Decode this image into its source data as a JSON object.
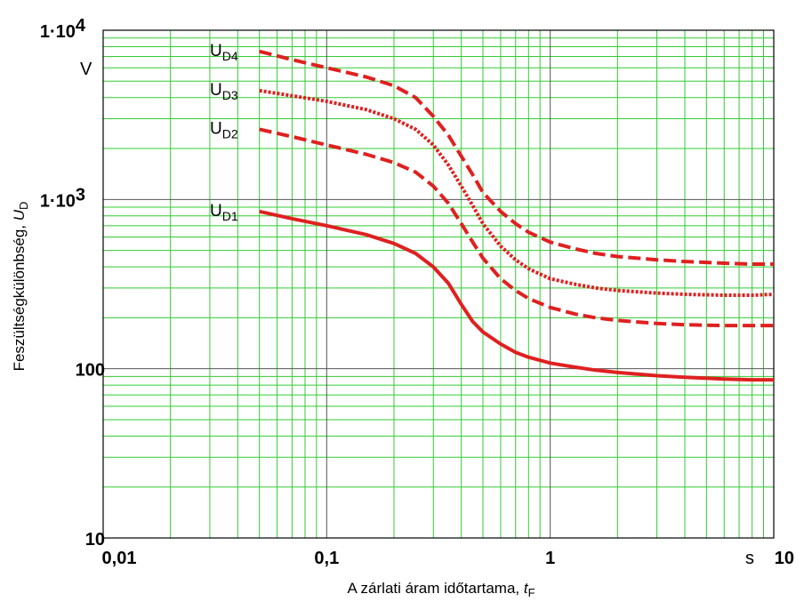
{
  "chart_data": {
    "type": "line",
    "x_scale": "log",
    "y_scale": "log",
    "xlim": [
      0.01,
      10
    ],
    "ylim": [
      10,
      10000
    ],
    "grid": true,
    "grid_color": "#33cc33",
    "line_color": "#e02020",
    "x_ticks": [
      {
        "value": 0.01,
        "label": "0,01"
      },
      {
        "value": 0.1,
        "label": "0,1"
      },
      {
        "value": 1,
        "label": "1"
      },
      {
        "value": 10,
        "label": "10"
      }
    ],
    "y_ticks": [
      {
        "value": 10,
        "label": "10"
      },
      {
        "value": 100,
        "label": "100"
      },
      {
        "value": 1000,
        "label_main": "1·10",
        "label_exp": "3"
      },
      {
        "value": 10000,
        "label_main": "1·10",
        "label_exp": "4"
      }
    ],
    "x_unit": "s",
    "y_unit": "V",
    "xlabel": {
      "main": "A zárlati áram időtartama, ",
      "var": "t",
      "sub": "F"
    },
    "ylabel": {
      "main": "Feszültségkülönbség, ",
      "var": "U",
      "sub": "D"
    },
    "series": [
      {
        "name": "UD1",
        "label_main": "U",
        "label_sub": "D1",
        "style": "solid",
        "x": [
          0.05,
          0.07,
          0.1,
          0.15,
          0.2,
          0.25,
          0.3,
          0.35,
          0.4,
          0.45,
          0.5,
          0.6,
          0.7,
          0.8,
          1.0,
          1.3,
          1.6,
          2,
          3,
          4,
          6,
          8,
          10
        ],
        "y": [
          850,
          770,
          700,
          620,
          550,
          480,
          400,
          320,
          240,
          190,
          165,
          140,
          125,
          117,
          108,
          102,
          98,
          95,
          91,
          89,
          87,
          86,
          86
        ]
      },
      {
        "name": "UD2",
        "label_main": "U",
        "label_sub": "D2",
        "style": "dashed",
        "x": [
          0.05,
          0.07,
          0.1,
          0.15,
          0.2,
          0.25,
          0.3,
          0.35,
          0.4,
          0.45,
          0.5,
          0.6,
          0.7,
          0.8,
          1.0,
          1.3,
          1.6,
          2,
          3,
          4,
          6,
          8,
          10
        ],
        "y": [
          2600,
          2350,
          2100,
          1850,
          1650,
          1450,
          1200,
          950,
          720,
          560,
          450,
          340,
          290,
          260,
          230,
          210,
          200,
          193,
          185,
          182,
          180,
          180,
          180
        ]
      },
      {
        "name": "UD3",
        "label_main": "U",
        "label_sub": "D3",
        "style": "dotted",
        "x": [
          0.05,
          0.07,
          0.1,
          0.15,
          0.2,
          0.25,
          0.3,
          0.35,
          0.4,
          0.45,
          0.5,
          0.6,
          0.7,
          0.8,
          1.0,
          1.3,
          1.6,
          2,
          3,
          4,
          6,
          8,
          10
        ],
        "y": [
          4400,
          4100,
          3800,
          3400,
          3000,
          2600,
          2100,
          1600,
          1200,
          920,
          720,
          530,
          440,
          390,
          340,
          315,
          300,
          290,
          280,
          275,
          272,
          272,
          275
        ]
      },
      {
        "name": "UD4",
        "label_main": "U",
        "label_sub": "D4",
        "style": "dashed",
        "x": [
          0.05,
          0.07,
          0.1,
          0.15,
          0.2,
          0.25,
          0.3,
          0.35,
          0.4,
          0.45,
          0.5,
          0.6,
          0.7,
          0.8,
          1.0,
          1.3,
          1.6,
          2,
          3,
          4,
          6,
          8,
          10
        ],
        "y": [
          7500,
          6700,
          6000,
          5300,
          4700,
          4000,
          3100,
          2400,
          1800,
          1400,
          1100,
          850,
          720,
          640,
          560,
          510,
          480,
          460,
          440,
          430,
          420,
          415,
          415
        ]
      }
    ]
  }
}
